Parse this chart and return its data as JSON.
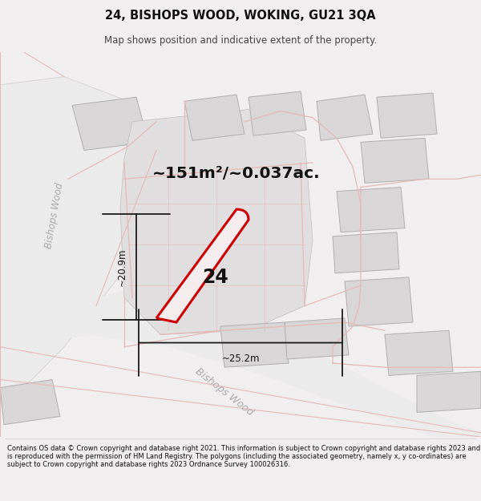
{
  "title": "24, BISHOPS WOOD, WOKING, GU21 3QA",
  "subtitle": "Map shows position and indicative extent of the property.",
  "area_text": "~151m²/~0.037ac.",
  "number_label": "24",
  "dim_vertical": "~20.9m",
  "dim_horizontal": "~25.2m",
  "road_label_diagonal": "Bishops Wood",
  "road_label_left": "Bishops Wood",
  "footer": "Contains OS data © Crown copyright and database right 2021. This information is subject to Crown copyright and database rights 2023 and is reproduced with the permission of HM Land Registry. The polygons (including the associated geometry, namely x, y co-ordinates) are subject to Crown copyright and database rights 2023 Ordnance Survey 100026316.",
  "bg_color": "#f5f0f0",
  "map_bg": "#f0eeee",
  "highlight_color": "#cc0000",
  "building_fill": "#d8d6d6",
  "building_edge": "#b0aeae",
  "road_fill": "#e8e6e6",
  "pink_line": "#e8b8b8",
  "dim_color": "#1a1a1a",
  "text_dark": "#111111",
  "text_gray": "#999090",
  "footer_bg": "#ffffff"
}
